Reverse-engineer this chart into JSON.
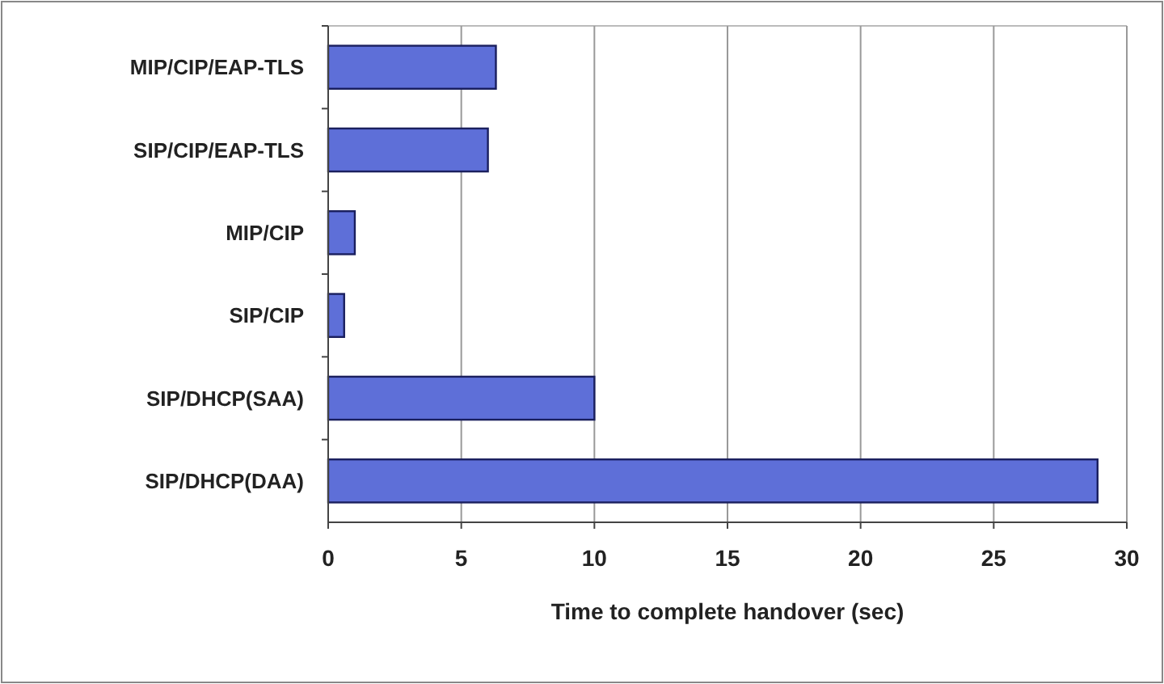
{
  "chart_data": {
    "type": "bar",
    "orientation": "horizontal",
    "categories": [
      "MIP/CIP/EAP-TLS",
      "SIP/CIP/EAP-TLS",
      "MIP/CIP",
      "SIP/CIP",
      "SIP/DHCP(SAA)",
      "SIP/DHCP(DAA)"
    ],
    "values": [
      6.3,
      6.0,
      1.0,
      0.6,
      10.0,
      28.9
    ],
    "color": "#5e6fd8",
    "xlabel": "Time to complete handover (sec)",
    "xlim": [
      0,
      30
    ],
    "xticks": [
      0,
      5,
      10,
      15,
      20,
      25,
      30
    ],
    "grid": "x"
  }
}
